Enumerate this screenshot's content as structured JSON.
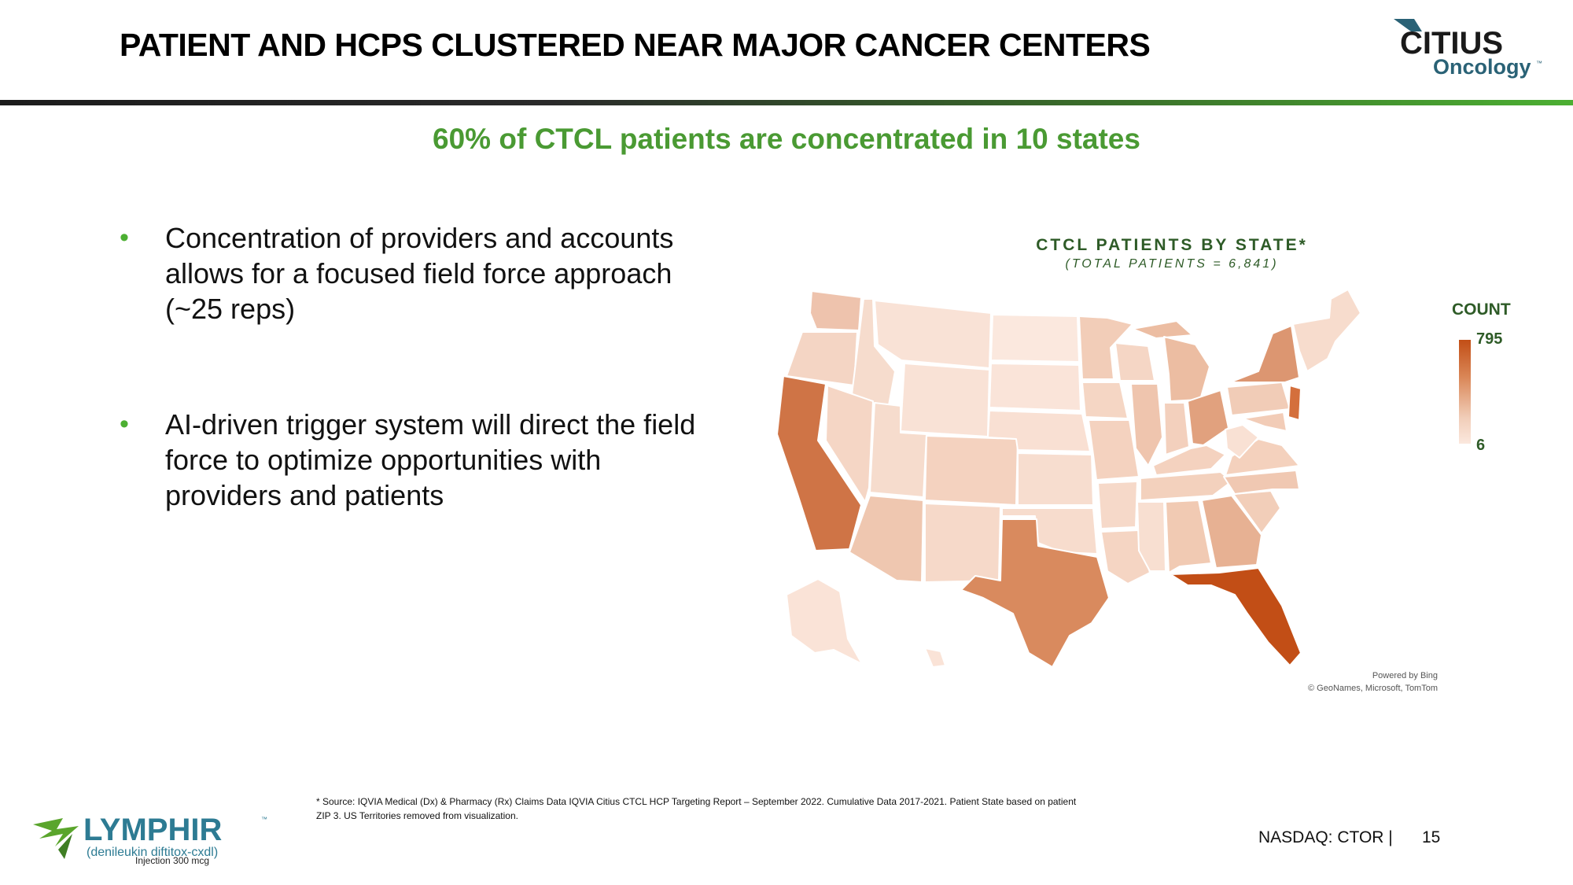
{
  "header": {
    "title": "PATIENT AND HCPS CLUSTERED NEAR MAJOR CANCER CENTERS",
    "logo_top": "CITIUS",
    "logo_bottom": "Oncology",
    "logo_tm": "™"
  },
  "subtitle": "60% of CTCL patients are concentrated in 10 states",
  "bullets": [
    "Concentration of providers and accounts allows for a focused field force approach (~25 reps)",
    "AI-driven trigger system will direct the field force to optimize opportunities with providers and patients"
  ],
  "bullet_symbol": "•",
  "map": {
    "title": "CTCL PATIENTS BY STATE*",
    "subtitle": "(TOTAL PATIENTS = 6,841)",
    "legend_title": "COUNT",
    "legend_max": "795",
    "legend_min": "6",
    "attribution_1": "Powered by Bing",
    "attribution_2": "© GeoNames, Microsoft, TomTom",
    "colors": {
      "high": "#c24e16",
      "low": "#fbe8de"
    }
  },
  "footnote_line1": "* Source: IQVIA Medical (Dx) & Pharmacy (Rx) Claims Data IQVIA Citius CTCL HCP Targeting Report – September 2022.  Cumulative Data 2017-2021. Patient State based on patient",
  "footnote_line2": "ZIP 3. US Territories removed from visualization.",
  "product": {
    "name": "LYMPHIR",
    "tm": "™",
    "generic": "(denileukin diftitox-cxdl)",
    "dose": "Injection 300 mcg"
  },
  "footer": {
    "ticker": "NASDAQ: CTOR  |",
    "page": "15"
  }
}
